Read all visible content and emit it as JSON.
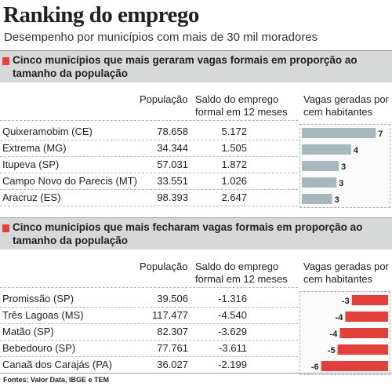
{
  "title": "Ranking do emprego",
  "subtitle": "Desempenho por municípios com mais de 30 mil moradores",
  "source": "Fontes: Valor Data, IBGE e TEM",
  "colors": {
    "accent": "#e2403a",
    "gain_bar": "#a7b8bd",
    "header_bg": "#d7d8d8"
  },
  "sections": [
    {
      "title": "Cinco municípios que mais geraram vagas formais em proporção ao tamanho da população",
      "col_pop": "População",
      "col_saldo_1": "Saldo do emprego",
      "col_saldo_2": "formal em 12 meses",
      "col_vagas_1": "Vagas geradas por",
      "col_vagas_2": "cem habitantes",
      "rows": [
        {
          "name": "Quixeramobim (CE)",
          "pop": "78.658",
          "saldo": "5.172",
          "label": "7"
        },
        {
          "name": "Extrema (MG)",
          "pop": "34.344",
          "saldo": "1.505",
          "label": "4"
        },
        {
          "name": "Itupeva (SP)",
          "pop": "57.031",
          "saldo": "1.872",
          "label": "3"
        },
        {
          "name": "Campo Novo do Parecis (MT)",
          "pop": "33.551",
          "saldo": "1.026",
          "label": "3"
        },
        {
          "name": "Aracruz (ES)",
          "pop": "98.393",
          "saldo": "2.647",
          "label": "3"
        }
      ]
    },
    {
      "title": "Cinco municípios que mais fecharam vagas formais em proporção ao tamanho da população",
      "col_pop": "População",
      "col_saldo_1": "Saldo do emprego",
      "col_saldo_2": "formal em 12 meses",
      "col_vagas_1": "Vagas geradas por",
      "col_vagas_2": "cem habitantes",
      "rows": [
        {
          "name": "Promissão (SP)",
          "pop": "39.506",
          "saldo": "-1.316",
          "label": "-3"
        },
        {
          "name": "Três Lagoas (MS)",
          "pop": "117.477",
          "saldo": "-4.540",
          "label": "-4"
        },
        {
          "name": "Matão (SP)",
          "pop": "82.307",
          "saldo": "-3.629",
          "label": "-4"
        },
        {
          "name": "Bebedouro (SP)",
          "pop": "77.761",
          "saldo": "-3.611",
          "label": "-5"
        },
        {
          "name": "Canaã dos Carajás (PA)",
          "pop": "36.027",
          "saldo": "-2.199",
          "label": "-6"
        }
      ]
    }
  ],
  "chart_data": [
    {
      "type": "bar",
      "categories": [
        "Quixeramobim (CE)",
        "Extrema (MG)",
        "Itupeva (SP)",
        "Campo Novo do Parecis (MT)",
        "Aracruz (ES)"
      ],
      "values": [
        6.6,
        4.4,
        3.3,
        3.1,
        2.7
      ],
      "labels": [
        "7",
        "4",
        "3",
        "3",
        "3"
      ],
      "ylabel": "Vagas geradas por cem habitantes",
      "ylim": [
        0,
        7
      ]
    },
    {
      "type": "bar",
      "categories": [
        "Promissão (SP)",
        "Três Lagoas (MS)",
        "Matão (SP)",
        "Bebedouro (SP)",
        "Canaã dos Carajás (PA)"
      ],
      "values": [
        -3.3,
        -3.9,
        -4.4,
        -4.6,
        -6.1
      ],
      "labels": [
        "-3",
        "-4",
        "-4",
        "-5",
        "-6"
      ],
      "ylabel": "Vagas geradas por cem habitantes",
      "ylim": [
        -7,
        0
      ]
    }
  ]
}
